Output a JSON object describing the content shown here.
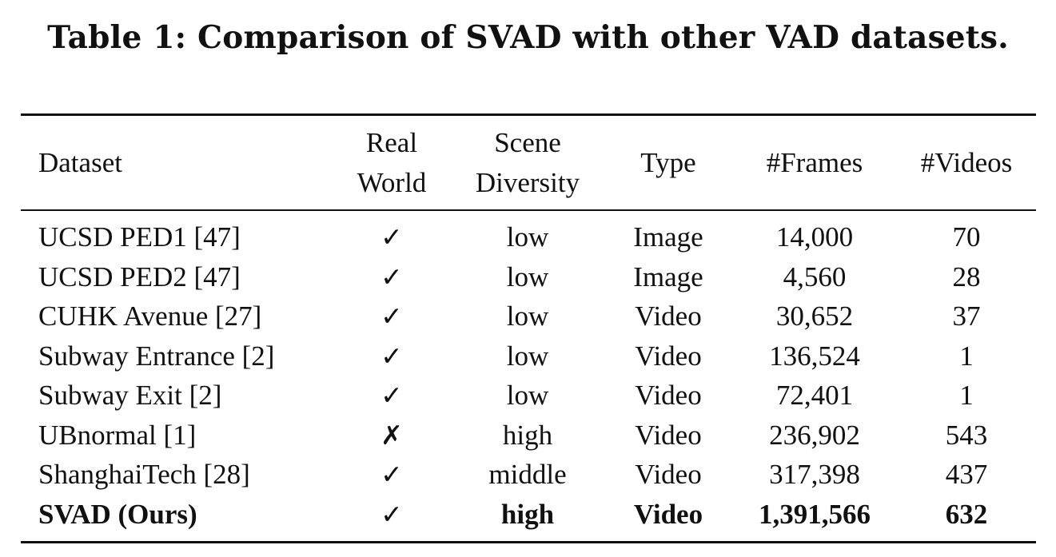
{
  "caption": "Table 1: Comparison of SVAD with other VAD datasets.",
  "table": {
    "headers": [
      {
        "line1": "Dataset",
        "line2": ""
      },
      {
        "line1": "Real",
        "line2": "World"
      },
      {
        "line1": "Scene",
        "line2": "Diversity"
      },
      {
        "line1": "Type",
        "line2": ""
      },
      {
        "line1": "#Frames",
        "line2": ""
      },
      {
        "line1": "#Videos",
        "line2": ""
      }
    ],
    "rows": [
      {
        "dataset": "UCSD PED1 [47]",
        "real_world": "✓",
        "scene_diversity": "low",
        "type": "Image",
        "frames": "14,000",
        "videos": "70"
      },
      {
        "dataset": "UCSD PED2 [47]",
        "real_world": "✓",
        "scene_diversity": "low",
        "type": "Image",
        "frames": "4,560",
        "videos": "28"
      },
      {
        "dataset": "CUHK Avenue [27]",
        "real_world": "✓",
        "scene_diversity": "low",
        "type": "Video",
        "frames": "30,652",
        "videos": "37"
      },
      {
        "dataset": "Subway Entrance [2]",
        "real_world": "✓",
        "scene_diversity": "low",
        "type": "Video",
        "frames": "136,524",
        "videos": "1"
      },
      {
        "dataset": "Subway Exit [2]",
        "real_world": "✓",
        "scene_diversity": "low",
        "type": "Video",
        "frames": "72,401",
        "videos": "1"
      },
      {
        "dataset": "UBnormal [1]",
        "real_world": "✗",
        "scene_diversity": "high",
        "type": "Video",
        "frames": "236,902",
        "videos": "543"
      },
      {
        "dataset": "ShanghaiTech [28]",
        "real_world": "✓",
        "scene_diversity": "middle",
        "type": "Video",
        "frames": "317,398",
        "videos": "437"
      },
      {
        "dataset": "SVAD (Ours)",
        "real_world": "✓",
        "scene_diversity": "high",
        "type": "Video",
        "frames": "1,391,566",
        "videos": "632"
      }
    ]
  }
}
